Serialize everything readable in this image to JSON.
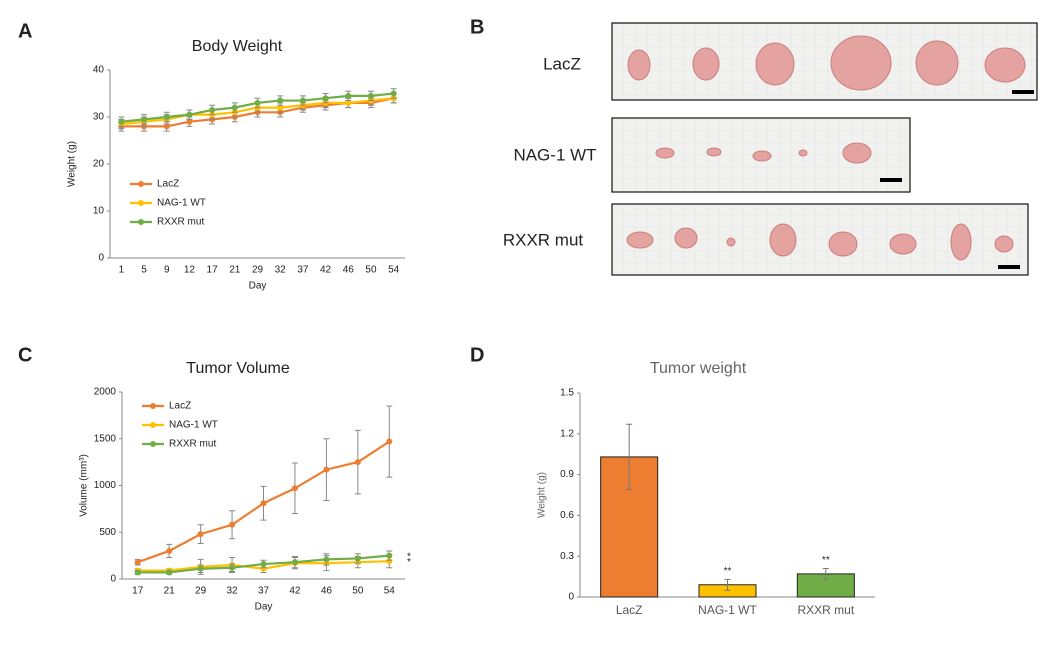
{
  "chart_data": [
    {
      "type": "line",
      "label": "A",
      "title": "Body Weight",
      "x_label": "Day",
      "y_label": "Weight (g)",
      "categories": [
        "1",
        "5",
        "9",
        "12",
        "17",
        "21",
        "29",
        "32",
        "37",
        "42",
        "46",
        "50",
        "54"
      ],
      "ylim": [
        0,
        40
      ],
      "yticks": [
        0,
        10,
        20,
        30,
        40
      ],
      "legend": "center left",
      "series": [
        {
          "name": "LacZ",
          "color": "#ed7d31",
          "values": [
            28,
            28,
            28,
            29,
            29.5,
            30,
            31,
            31,
            32,
            32.5,
            33,
            33,
            34
          ],
          "errors": [
            1,
            1,
            1,
            1,
            1,
            1,
            1,
            1,
            1,
            1,
            1,
            1,
            1
          ]
        },
        {
          "name": "NAG-1 WT",
          "color": "#ffc000",
          "values": [
            28.5,
            29,
            29.5,
            30.5,
            30.5,
            31,
            32,
            32,
            32.5,
            33,
            33,
            33.5,
            34
          ],
          "errors": [
            1,
            1,
            1,
            1,
            1,
            1,
            1,
            1,
            1,
            1,
            1,
            1,
            1
          ]
        },
        {
          "name": "RXXR mut",
          "color": "#70ad47",
          "values": [
            29,
            29.5,
            30,
            30.5,
            31.5,
            32,
            33,
            33.5,
            33.5,
            34,
            34.5,
            34.5,
            35
          ],
          "errors": [
            1,
            1,
            1,
            1,
            1,
            1,
            1,
            1,
            1,
            1,
            1,
            1,
            1
          ]
        }
      ]
    },
    {
      "type": "line",
      "label": "C",
      "title": "Tumor Volume",
      "x_label": "Day",
      "y_label": "Volume (mm³)",
      "categories": [
        "17",
        "21",
        "29",
        "32",
        "37",
        "42",
        "46",
        "50",
        "54"
      ],
      "ylim": [
        0,
        2000
      ],
      "yticks": [
        0,
        500,
        1000,
        1500,
        2000
      ],
      "legend": "upper left",
      "series": [
        {
          "name": "LacZ",
          "color": "#ed7d31",
          "values": [
            180,
            300,
            480,
            580,
            810,
            970,
            1170,
            1250,
            1470
          ],
          "errors": [
            30,
            70,
            100,
            150,
            180,
            270,
            330,
            340,
            380
          ]
        },
        {
          "name": "NAG-1 WT",
          "color": "#ffc000",
          "values": [
            90,
            90,
            130,
            150,
            110,
            170,
            170,
            180,
            190
          ],
          "errors": [
            20,
            20,
            80,
            80,
            40,
            60,
            80,
            60,
            70
          ]
        },
        {
          "name": "RXXR mut",
          "color": "#70ad47",
          "values": [
            70,
            70,
            110,
            120,
            160,
            180,
            210,
            220,
            250
          ],
          "errors": [
            20,
            20,
            40,
            40,
            40,
            60,
            60,
            50,
            50
          ]
        }
      ],
      "annotations": [
        {
          "text": "*",
          "series": "RXXR mut"
        },
        {
          "text": "*",
          "series": "NAG-1 WT"
        }
      ]
    },
    {
      "type": "bar",
      "label": "D",
      "title": "Tumor weight",
      "y_label": "Weight (g)",
      "categories": [
        "LacZ",
        "NAG-1 WT",
        "RXXR mut"
      ],
      "values": [
        1.03,
        0.09,
        0.17
      ],
      "errors": [
        0.24,
        0.04,
        0.04
      ],
      "colors": [
        "#ed7d31",
        "#ffc000",
        "#70ad47"
      ],
      "ylim": [
        0,
        1.5
      ],
      "yticks": [
        0,
        0.3,
        0.6,
        0.9,
        1.2,
        1.5
      ],
      "annotations": [
        {
          "text": "**",
          "x": "NAG-1 WT"
        },
        {
          "text": "**",
          "x": "RXXR mut"
        }
      ]
    }
  ],
  "photo_panel": {
    "label": "B",
    "rows": [
      "LacZ",
      "NAG-1 WT",
      "RXXR mut"
    ]
  }
}
